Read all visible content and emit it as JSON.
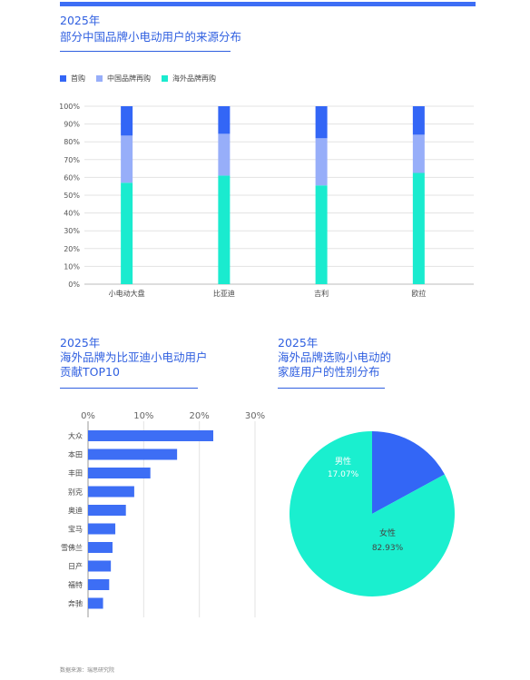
{
  "header": {
    "year": "2025年",
    "title": "部分中国品牌小电动用户的来源分布"
  },
  "section2": {
    "year": "2025年",
    "title_line1": "海外品牌为比亚迪小电动用户",
    "title_line2": "贡献TOP10"
  },
  "section3": {
    "year": "2025年",
    "title_line1": "海外品牌选购小电动的",
    "title_line2": "家庭用户的性别分布"
  },
  "source": "数据来源：瑞思研究院",
  "colors": {
    "accent": "#3d6ef5",
    "first_buy": "#3366f6",
    "cn_rebuy": "#97aef9",
    "foreign_rebuy": "#1aebcf",
    "male": "#3366f6",
    "female": "#1aefcf"
  },
  "chart_data": [
    {
      "type": "bar",
      "stacked": true,
      "categories": [
        "小电动大盘",
        "比亚迪",
        "吉利",
        "欧拉"
      ],
      "series": [
        {
          "name": "海外品牌再购",
          "values": [
            57,
            61,
            55.5,
            62.5
          ]
        },
        {
          "name": "中国品牌再购",
          "values": [
            26.5,
            23.5,
            26.5,
            21.5
          ]
        },
        {
          "name": "首购",
          "values": [
            16.5,
            15.5,
            18,
            16
          ]
        }
      ],
      "legend": [
        "首购",
        "中国品牌再购",
        "海外品牌再购"
      ],
      "legend_position": "top-left",
      "yticks": [
        "0%",
        "10%",
        "20%",
        "30%",
        "40%",
        "50%",
        "60%",
        "70%",
        "80%",
        "90%",
        "100%"
      ],
      "ylim": [
        0,
        100
      ],
      "grid": true
    },
    {
      "type": "bar",
      "orientation": "horizontal",
      "categories": [
        "大众",
        "本田",
        "丰田",
        "别克",
        "奥迪",
        "宝马",
        "雪佛兰",
        "日产",
        "福特",
        "奔驰"
      ],
      "values": [
        22.5,
        16,
        11.2,
        8.3,
        6.8,
        4.9,
        4.4,
        4.1,
        3.8,
        2.7
      ],
      "xticks": [
        "0%",
        "10%",
        "20%",
        "30%"
      ],
      "xlim": [
        0,
        30
      ],
      "grid": true
    },
    {
      "type": "pie",
      "labels": [
        "男性",
        "女性"
      ],
      "values": [
        17.07,
        82.93
      ],
      "value_labels": [
        "17.07%",
        "82.93%"
      ]
    }
  ]
}
